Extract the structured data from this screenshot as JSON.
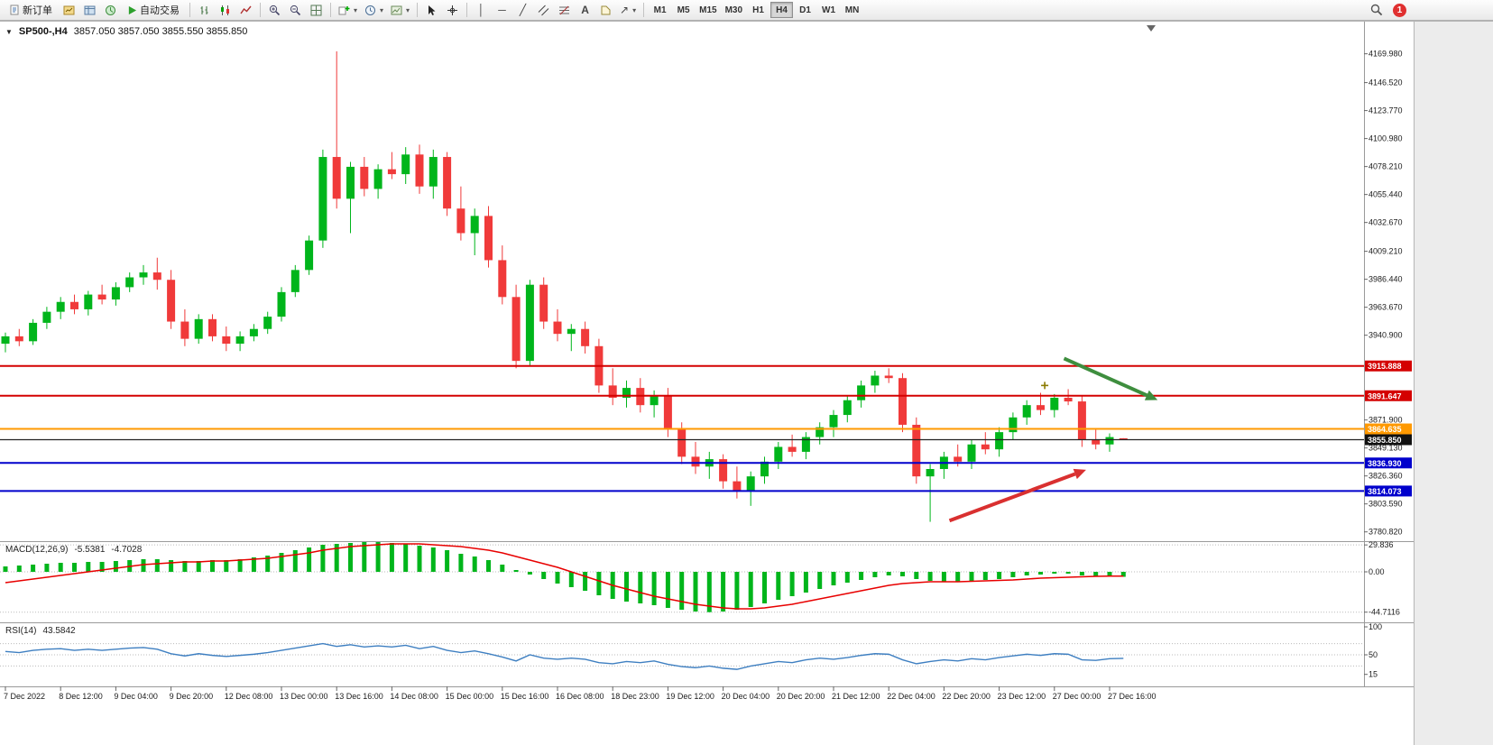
{
  "toolbar": {
    "new_order_label": "新订单",
    "autotrading_label": "自动交易",
    "text_tool_label": "A",
    "arrow_tool_glyph": "↗",
    "vline_glyph": "│",
    "hline_glyph": "─",
    "trendline_glyph": "╱",
    "dropdown_glyph": "▾",
    "timeframes": [
      "M1",
      "M5",
      "M15",
      "M30",
      "H1",
      "H4",
      "D1",
      "W1",
      "MN"
    ],
    "active_timeframe": "H4",
    "notification_count": "1",
    "icon_names": [
      "new-order-icon",
      "market-watch-icon",
      "data-window-icon",
      "navigator-icon",
      "autotrading-icon",
      "bar-chart-icon",
      "candlestick-chart-icon",
      "line-chart-icon",
      "zoom-in-icon",
      "zoom-out-icon",
      "tile-windows-icon",
      "new-chart-icon",
      "periods-icon",
      "templates-icon",
      "cursor-icon",
      "crosshair-icon",
      "vertical-line-icon",
      "horizontal-line-icon",
      "trendline-icon",
      "channel-icon",
      "fibonacci-icon",
      "text-icon",
      "label-icon",
      "arrows-icon",
      "search-icon"
    ]
  },
  "chart": {
    "collapse_glyph": "▼",
    "title": "SP500-,H4",
    "quote": "3857.050 3857.050 3855.550 3855.850"
  },
  "colors": {
    "bull": "#00B51B",
    "bear": "#F03A3A",
    "resistance": "#D40000",
    "support": "#0000CC",
    "pivot": "#FF9900",
    "current_price_bg": "#111111",
    "macd_histogram": "#00B51B",
    "macd_signal": "#E80000",
    "rsi_line": "#3E7FC1",
    "arrow_green": "#3E8E3E",
    "arrow_red": "#D93030"
  },
  "chart_data": [
    {
      "type": "candlestick",
      "symbol": "SP500-",
      "timeframe": "H4",
      "ohlc_current": [
        3857.05,
        3857.05,
        3855.55,
        3855.85
      ],
      "ylim": [
        3774,
        4180
      ],
      "y_ticks": [
        {
          "label": "4169.980",
          "price": 4169.98
        },
        {
          "label": "4146.520",
          "price": 4146.52
        },
        {
          "label": "4123.770",
          "price": 4123.77
        },
        {
          "label": "4100.980",
          "price": 4100.98
        },
        {
          "label": "4078.210",
          "price": 4078.21
        },
        {
          "label": "4055.440",
          "price": 4055.44
        },
        {
          "label": "4032.670",
          "price": 4032.67
        },
        {
          "label": "4009.210",
          "price": 4009.21
        },
        {
          "label": "3986.440",
          "price": 3986.44
        },
        {
          "label": "3963.670",
          "price": 3963.67
        },
        {
          "label": "3940.900",
          "price": 3940.9
        },
        {
          "label": "3871.900",
          "price": 3871.9
        },
        {
          "label": "3849.130",
          "price": 3849.13
        },
        {
          "label": "3826.360",
          "price": 3826.36
        },
        {
          "label": "3803.590",
          "price": 3803.59
        },
        {
          "label": "3780.820",
          "price": 3780.82
        }
      ],
      "x_labels": [
        "7 Dec 2022",
        "8 Dec 12:00",
        "9 Dec 04:00",
        "9 Dec 20:00",
        "12 Dec 08:00",
        "13 Dec 00:00",
        "13 Dec 16:00",
        "14 Dec 08:00",
        "15 Dec 00:00",
        "15 Dec 16:00",
        "16 Dec 08:00",
        "18 Dec 23:00",
        "19 Dec 12:00",
        "20 Dec 04:00",
        "20 Dec 20:00",
        "21 Dec 12:00",
        "22 Dec 04:00",
        "22 Dec 20:00",
        "23 Dec 12:00",
        "27 Dec 00:00",
        "27 Dec 16:00"
      ],
      "label_every": 4,
      "candles": [
        [
          3934,
          3943,
          3927,
          3940
        ],
        [
          3940,
          3946,
          3932,
          3936
        ],
        [
          3936,
          3954,
          3933,
          3951
        ],
        [
          3951,
          3964,
          3946,
          3960
        ],
        [
          3960,
          3972,
          3954,
          3968
        ],
        [
          3968,
          3974,
          3958,
          3962
        ],
        [
          3962,
          3977,
          3957,
          3974
        ],
        [
          3974,
          3982,
          3966,
          3970
        ],
        [
          3970,
          3984,
          3965,
          3980
        ],
        [
          3980,
          3992,
          3976,
          3988
        ],
        [
          3988,
          3998,
          3982,
          3992
        ],
        [
          3992,
          4004,
          3978,
          3986
        ],
        [
          3986,
          3994,
          3946,
          3952
        ],
        [
          3952,
          3962,
          3932,
          3938
        ],
        [
          3938,
          3958,
          3934,
          3954
        ],
        [
          3954,
          3958,
          3936,
          3940
        ],
        [
          3940,
          3948,
          3928,
          3934
        ],
        [
          3934,
          3944,
          3928,
          3940
        ],
        [
          3940,
          3950,
          3936,
          3946
        ],
        [
          3946,
          3960,
          3942,
          3956
        ],
        [
          3956,
          3980,
          3952,
          3976
        ],
        [
          3976,
          3998,
          3972,
          3994
        ],
        [
          3994,
          4022,
          3990,
          4018
        ],
        [
          4018,
          4092,
          4012,
          4086
        ],
        [
          4086,
          4172,
          4044,
          4052
        ],
        [
          4052,
          4082,
          4024,
          4078
        ],
        [
          4078,
          4086,
          4054,
          4060
        ],
        [
          4060,
          4080,
          4052,
          4076
        ],
        [
          4076,
          4090,
          4068,
          4072
        ],
        [
          4072,
          4094,
          4064,
          4088
        ],
        [
          4088,
          4096,
          4056,
          4062
        ],
        [
          4062,
          4092,
          4052,
          4086
        ],
        [
          4086,
          4090,
          4038,
          4044
        ],
        [
          4044,
          4062,
          4018,
          4024
        ],
        [
          4024,
          4044,
          4006,
          4038
        ],
        [
          4038,
          4046,
          3996,
          4002
        ],
        [
          4002,
          4014,
          3966,
          3972
        ],
        [
          3972,
          3982,
          3914,
          3920
        ],
        [
          3920,
          3986,
          3916,
          3982
        ],
        [
          3982,
          3988,
          3946,
          3952
        ],
        [
          3952,
          3962,
          3936,
          3942
        ],
        [
          3942,
          3950,
          3928,
          3946
        ],
        [
          3946,
          3952,
          3926,
          3932
        ],
        [
          3932,
          3938,
          3894,
          3900
        ],
        [
          3900,
          3914,
          3884,
          3890
        ],
        [
          3890,
          3904,
          3882,
          3898
        ],
        [
          3898,
          3906,
          3878,
          3884
        ],
        [
          3884,
          3896,
          3874,
          3892
        ],
        [
          3892,
          3898,
          3858,
          3864
        ],
        [
          3864,
          3870,
          3836,
          3842
        ],
        [
          3842,
          3854,
          3828,
          3834
        ],
        [
          3834,
          3846,
          3824,
          3840
        ],
        [
          3840,
          3844,
          3816,
          3822
        ],
        [
          3822,
          3834,
          3808,
          3814
        ],
        [
          3814,
          3830,
          3802,
          3826
        ],
        [
          3826,
          3842,
          3820,
          3838
        ],
        [
          3838,
          3854,
          3832,
          3850
        ],
        [
          3850,
          3860,
          3842,
          3846
        ],
        [
          3846,
          3862,
          3840,
          3858
        ],
        [
          3858,
          3870,
          3852,
          3866
        ],
        [
          3866,
          3880,
          3858,
          3876
        ],
        [
          3876,
          3892,
          3870,
          3888
        ],
        [
          3888,
          3904,
          3882,
          3900
        ],
        [
          3900,
          3912,
          3894,
          3908
        ],
        [
          3908,
          3914,
          3902,
          3906
        ],
        [
          3906,
          3910,
          3862,
          3868
        ],
        [
          3868,
          3874,
          3820,
          3826
        ],
        [
          3826,
          3836,
          3789,
          3832
        ],
        [
          3832,
          3846,
          3824,
          3842
        ],
        [
          3842,
          3852,
          3834,
          3838
        ],
        [
          3838,
          3856,
          3832,
          3852
        ],
        [
          3852,
          3862,
          3844,
          3848
        ],
        [
          3848,
          3866,
          3842,
          3862
        ],
        [
          3862,
          3878,
          3856,
          3874
        ],
        [
          3874,
          3888,
          3868,
          3884
        ],
        [
          3884,
          3894,
          3876,
          3880
        ],
        [
          3880,
          3893,
          3874,
          3890
        ],
        [
          3890,
          3897,
          3884,
          3887
        ],
        [
          3887,
          3892,
          3850,
          3856
        ],
        [
          3856,
          3864,
          3848,
          3852
        ],
        [
          3852,
          3861,
          3846,
          3858
        ],
        [
          3857.05,
          3857.05,
          3855.55,
          3855.85
        ]
      ],
      "lines": [
        {
          "name": "resistance-line-upper",
          "price": 3915.888,
          "label": "3915.888",
          "color": "#D40000"
        },
        {
          "name": "resistance-line-lower",
          "price": 3891.647,
          "label": "3891.647",
          "color": "#D40000"
        },
        {
          "name": "pivot-line",
          "price": 3864.635,
          "label": "3864.635",
          "color": "#FF9900"
        },
        {
          "name": "support-line-upper",
          "price": 3836.93,
          "label": "3836.930",
          "color": "#0000CC"
        },
        {
          "name": "support-line-lower",
          "price": 3814.073,
          "label": "3814.073",
          "color": "#0000CC"
        }
      ],
      "current_price": {
        "price": 3855.85,
        "label": "3855.850"
      },
      "annotations": [
        {
          "type": "arrow",
          "name": "green-down-arrow",
          "color": "#3E8E3E",
          "bar1": 76.7,
          "price1": 3922,
          "bar2": 82.7,
          "price2": 3892
        },
        {
          "type": "arrow",
          "name": "red-up-arrow",
          "color": "#D93030",
          "bar1": 68.4,
          "price1": 3790,
          "bar2": 77.5,
          "price2": 3828
        },
        {
          "type": "cross",
          "name": "cross-marker",
          "color": "#8a7a00",
          "bar": 75.3,
          "price": 3900
        }
      ]
    },
    {
      "type": "bar",
      "name": "MACD",
      "label": "MACD(12,26,9)",
      "macd_value": "-5.5381",
      "signal_value": "-4.7028",
      "y_ticks": [
        {
          "label": "29.836",
          "value": 29.836
        },
        {
          "label": "0.00",
          "value": 0
        },
        {
          "label": "-44.7116",
          "value": -44.7116
        }
      ],
      "histogram": [
        6,
        7,
        8,
        9,
        10,
        10,
        11,
        11,
        12,
        13,
        14,
        14,
        13,
        12,
        12,
        13,
        13,
        14,
        16,
        18,
        21,
        24,
        27,
        30,
        31,
        32,
        33,
        33,
        32,
        31,
        29,
        27,
        24,
        20,
        17,
        13,
        8,
        2,
        -3,
        -8,
        -13,
        -17,
        -21,
        -26,
        -30,
        -33,
        -35,
        -37,
        -40,
        -42,
        -44,
        -44.7,
        -44,
        -42,
        -39,
        -35,
        -31,
        -27,
        -23,
        -19,
        -15,
        -12,
        -9,
        -6,
        -4,
        -5,
        -8,
        -10,
        -11,
        -11,
        -10,
        -9,
        -8,
        -6,
        -4,
        -3,
        -2,
        -2,
        -4,
        -5,
        -5.5,
        -5.54
      ],
      "signal": [
        -12,
        -10,
        -8,
        -6,
        -4,
        -2,
        0,
        2,
        4,
        6,
        8,
        9,
        10,
        11,
        11,
        12,
        12,
        13,
        14,
        15,
        17,
        19,
        21,
        24,
        26,
        28,
        29,
        30,
        31,
        31,
        31,
        30,
        29,
        28,
        26,
        24,
        21,
        17,
        13,
        9,
        5,
        0,
        -5,
        -10,
        -15,
        -19,
        -23,
        -27,
        -30,
        -33,
        -36,
        -38,
        -40,
        -41,
        -41,
        -40,
        -38,
        -36,
        -33,
        -30,
        -27,
        -24,
        -21,
        -18,
        -15,
        -13,
        -12,
        -11,
        -11,
        -11,
        -10.5,
        -10,
        -9.5,
        -9,
        -8,
        -7,
        -6.5,
        -6,
        -5.5,
        -5,
        -4.8,
        -4.7
      ]
    },
    {
      "type": "line",
      "name": "RSI",
      "label": "RSI(14)",
      "value": "43.5842",
      "levels": [
        70,
        50,
        30
      ],
      "y_ticks": [
        {
          "label": "100",
          "value": 100
        },
        {
          "label": "50",
          "value": 50
        },
        {
          "label": "15",
          "value": 15
        }
      ],
      "values": [
        56,
        54,
        58,
        60,
        61,
        58,
        60,
        58,
        60,
        62,
        63,
        60,
        52,
        48,
        52,
        49,
        47,
        49,
        51,
        54,
        58,
        62,
        66,
        70,
        65,
        68,
        64,
        66,
        64,
        67,
        61,
        65,
        58,
        54,
        57,
        52,
        46,
        39,
        50,
        44,
        42,
        44,
        42,
        36,
        34,
        38,
        36,
        39,
        33,
        29,
        27,
        30,
        26,
        24,
        30,
        34,
        38,
        36,
        41,
        44,
        42,
        45,
        49,
        52,
        51,
        41,
        34,
        38,
        41,
        39,
        43,
        41,
        45,
        48,
        51,
        49,
        52,
        51,
        41,
        40,
        43,
        43.58
      ]
    }
  ]
}
